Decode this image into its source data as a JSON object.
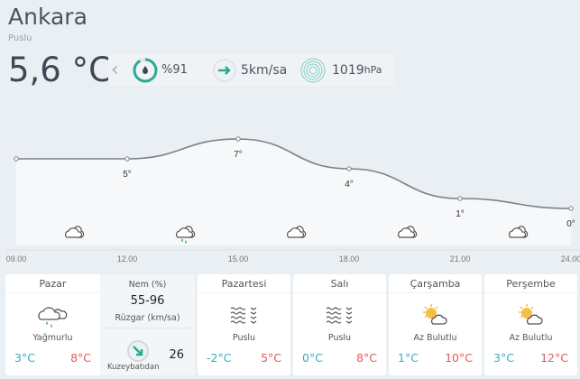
{
  "header": {
    "city": "Ankara",
    "condition": "Puslu",
    "temperature": "5,6 °C"
  },
  "stats": {
    "humidity": "%91",
    "wind": "5km/sa",
    "pressure_value": "1019",
    "pressure_unit": "hPa"
  },
  "colors": {
    "accent": "#2bab93",
    "low": "#3ea9c2",
    "high": "#de5c5c",
    "rain": "#5cc25c"
  },
  "chart_data": {
    "type": "line",
    "x": [
      "09.00",
      "12.00",
      "15.00",
      "18.00",
      "21.00",
      "24.00"
    ],
    "values": [
      5,
      5,
      7,
      4,
      1,
      0
    ],
    "labels": [
      "",
      "5°",
      "7°",
      "4°",
      "1°",
      "0°"
    ],
    "icons": [
      "cloud-icon",
      "rain-icon",
      "cloud-icon",
      "cloud-icon",
      "cloud-icon"
    ]
  },
  "today": {
    "name": "Pazar",
    "desc": "Yağmurlu",
    "low": "3°C",
    "high": "8°C",
    "icon": "rain-icon",
    "humidity_label": "Nem (%)",
    "humidity": "55-96",
    "wind_label": "Rüzgar (km/sa)",
    "wind": "26",
    "wind_dir": "Kuzeybatıdan"
  },
  "days": [
    {
      "name": "Pazartesi",
      "desc": "Puslu",
      "low": "-2°C",
      "high": "5°C",
      "icon": "fog-icon"
    },
    {
      "name": "Salı",
      "desc": "Puslu",
      "low": "0°C",
      "high": "8°C",
      "icon": "fog-icon"
    },
    {
      "name": "Çarşamba",
      "desc": "Az Bulutlu",
      "low": "1°C",
      "high": "10°C",
      "icon": "partly-cloudy-icon"
    },
    {
      "name": "Perşembe",
      "desc": "Az Bulutlu",
      "low": "3°C",
      "high": "12°C",
      "icon": "partly-cloudy-icon"
    }
  ]
}
